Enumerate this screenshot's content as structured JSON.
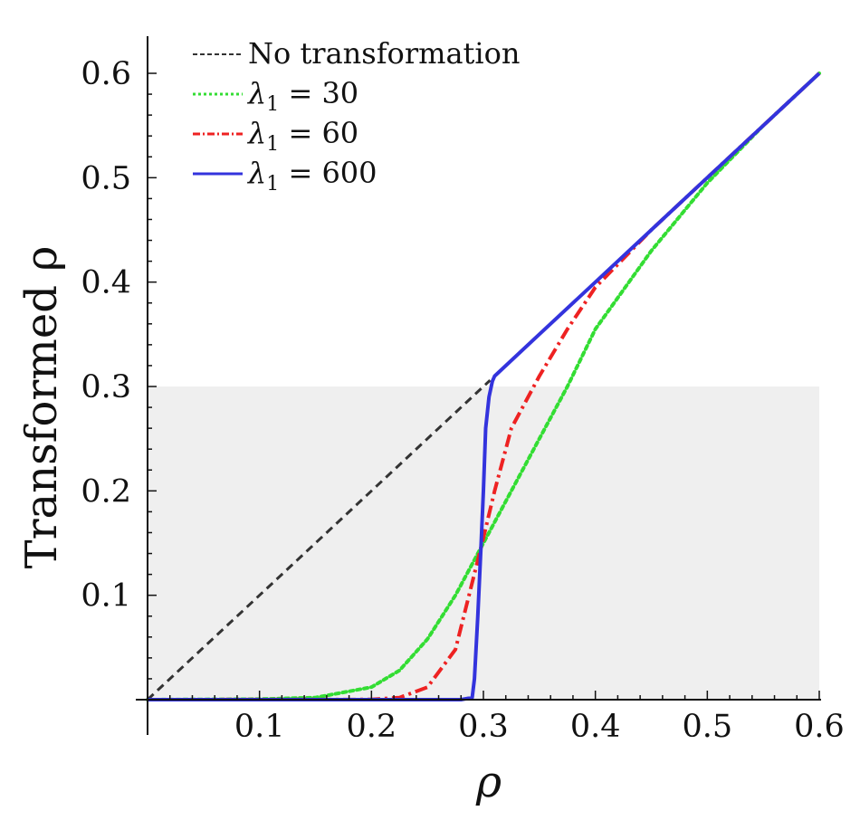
{
  "chart_data": {
    "type": "line",
    "xlabel": "ρ",
    "ylabel": "Transformed ρ",
    "xlim": [
      0,
      0.6
    ],
    "ylim": [
      0,
      0.6
    ],
    "x_ticks": [
      "0.1",
      "0.2",
      "0.3",
      "0.4",
      "0.5",
      "0.6"
    ],
    "y_ticks": [
      "0.1",
      "0.2",
      "0.3",
      "0.4",
      "0.5",
      "0.6"
    ],
    "x_tick_values": [
      0.1,
      0.2,
      0.3,
      0.4,
      0.5,
      0.6
    ],
    "y_tick_values": [
      0.1,
      0.2,
      0.3,
      0.4,
      0.5,
      0.6
    ],
    "shaded_region": {
      "x": [
        0,
        0.6
      ],
      "y": [
        0,
        0.3
      ],
      "color": "#efefef"
    },
    "grid": false,
    "legend_position": "top-left",
    "series": [
      {
        "name": "No transformation",
        "color": "#333333",
        "style": "dashed",
        "x": [
          0,
          0.306
        ],
        "y": [
          0,
          0.306
        ]
      },
      {
        "name": "λ1 = 30",
        "legend_symbol": "λ",
        "legend_subscript": "1",
        "legend_value": " = 30",
        "color": "#33dd33",
        "style": "dotted",
        "x": [
          0,
          0.1,
          0.15,
          0.2,
          0.225,
          0.25,
          0.275,
          0.3,
          0.325,
          0.35,
          0.375,
          0.4,
          0.45,
          0.5,
          0.55,
          0.6
        ],
        "y": [
          0,
          0.0005,
          0.002,
          0.012,
          0.028,
          0.058,
          0.1,
          0.15,
          0.2,
          0.25,
          0.3,
          0.355,
          0.43,
          0.495,
          0.55,
          0.6
        ]
      },
      {
        "name": "λ1 = 60",
        "legend_symbol": "λ",
        "legend_subscript": "1",
        "legend_value": " = 60",
        "color": "#ee2222",
        "style": "dashdot",
        "x": [
          0,
          0.2,
          0.225,
          0.25,
          0.275,
          0.3,
          0.31,
          0.325,
          0.35,
          0.375,
          0.4,
          0.45,
          0.5,
          0.55,
          0.6
        ],
        "y": [
          0,
          0.0002,
          0.002,
          0.012,
          0.048,
          0.155,
          0.2,
          0.26,
          0.31,
          0.355,
          0.395,
          0.45,
          0.5,
          0.55,
          0.6
        ]
      },
      {
        "name": "λ1 = 600",
        "legend_symbol": "λ",
        "legend_subscript": "1",
        "legend_value": " = 600",
        "color": "#3333dd",
        "style": "solid",
        "x": [
          0,
          0.28,
          0.29,
          0.292,
          0.295,
          0.298,
          0.3,
          0.302,
          0.305,
          0.308,
          0.31,
          0.35,
          0.4,
          0.45,
          0.5,
          0.55,
          0.6
        ],
        "y": [
          0,
          0.0,
          0.002,
          0.02,
          0.08,
          0.15,
          0.2,
          0.26,
          0.29,
          0.305,
          0.31,
          0.35,
          0.4,
          0.45,
          0.5,
          0.55,
          0.6
        ]
      }
    ]
  }
}
